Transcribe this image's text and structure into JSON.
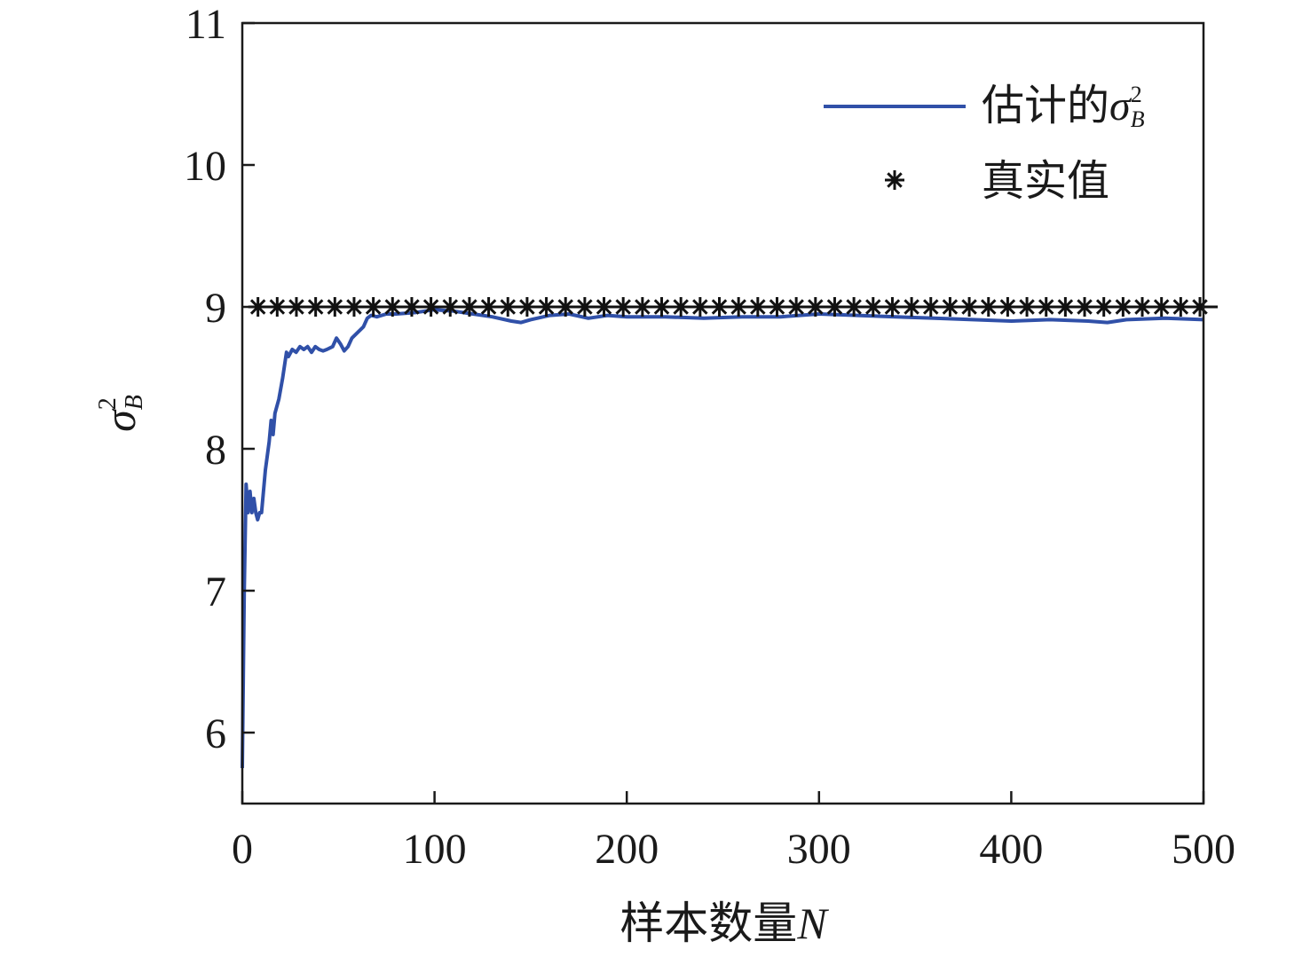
{
  "chart_data": {
    "type": "line",
    "title": "",
    "xlabel": "样本数量",
    "xlabel_var": "N",
    "ylabel_base": "σ",
    "ylabel_sup": "2",
    "ylabel_sub": "B",
    "xlim": [
      0,
      500
    ],
    "ylim": [
      5.5,
      11
    ],
    "xticks": [
      0,
      100,
      200,
      300,
      400,
      500
    ],
    "yticks": [
      6,
      7,
      8,
      9,
      10,
      11
    ],
    "legend_position": "top-right",
    "series": [
      {
        "name": "估计的",
        "name_var": "σ",
        "name_sup": "2",
        "name_sub": "B",
        "color": "#3050a8",
        "style": "line",
        "x": [
          0,
          1,
          2,
          3,
          4,
          5,
          6,
          7,
          8,
          9,
          10,
          12,
          14,
          15,
          16,
          17,
          19,
          21,
          23,
          24,
          26,
          28,
          30,
          32,
          34,
          36,
          38,
          40,
          42,
          44,
          47,
          49,
          51,
          53,
          55,
          57,
          60,
          63,
          65,
          67,
          70,
          75,
          80,
          90,
          100,
          110,
          120,
          130,
          140,
          145,
          150,
          160,
          170,
          180,
          190,
          200,
          220,
          240,
          260,
          280,
          300,
          320,
          340,
          360,
          380,
          400,
          420,
          440,
          450,
          460,
          480,
          500
        ],
        "y": [
          5.75,
          7.0,
          7.75,
          7.55,
          7.7,
          7.55,
          7.65,
          7.55,
          7.5,
          7.55,
          7.55,
          7.85,
          8.05,
          8.2,
          8.1,
          8.25,
          8.35,
          8.5,
          8.68,
          8.65,
          8.7,
          8.68,
          8.72,
          8.7,
          8.72,
          8.68,
          8.72,
          8.7,
          8.69,
          8.7,
          8.72,
          8.78,
          8.74,
          8.69,
          8.72,
          8.78,
          8.82,
          8.86,
          8.92,
          8.94,
          8.93,
          8.95,
          8.95,
          8.96,
          8.98,
          8.97,
          8.95,
          8.93,
          8.9,
          8.89,
          8.91,
          8.94,
          8.95,
          8.92,
          8.94,
          8.93,
          8.93,
          8.92,
          8.93,
          8.93,
          8.95,
          8.94,
          8.93,
          8.92,
          8.91,
          8.9,
          8.91,
          8.9,
          8.89,
          8.91,
          8.92,
          8.91
        ]
      },
      {
        "name": "真实值",
        "color": "#111111",
        "style": "line-with-asterisk-markers",
        "value": 9,
        "marker_x_start": 10,
        "marker_x_step": 10,
        "marker_x_end": 500
      }
    ]
  }
}
